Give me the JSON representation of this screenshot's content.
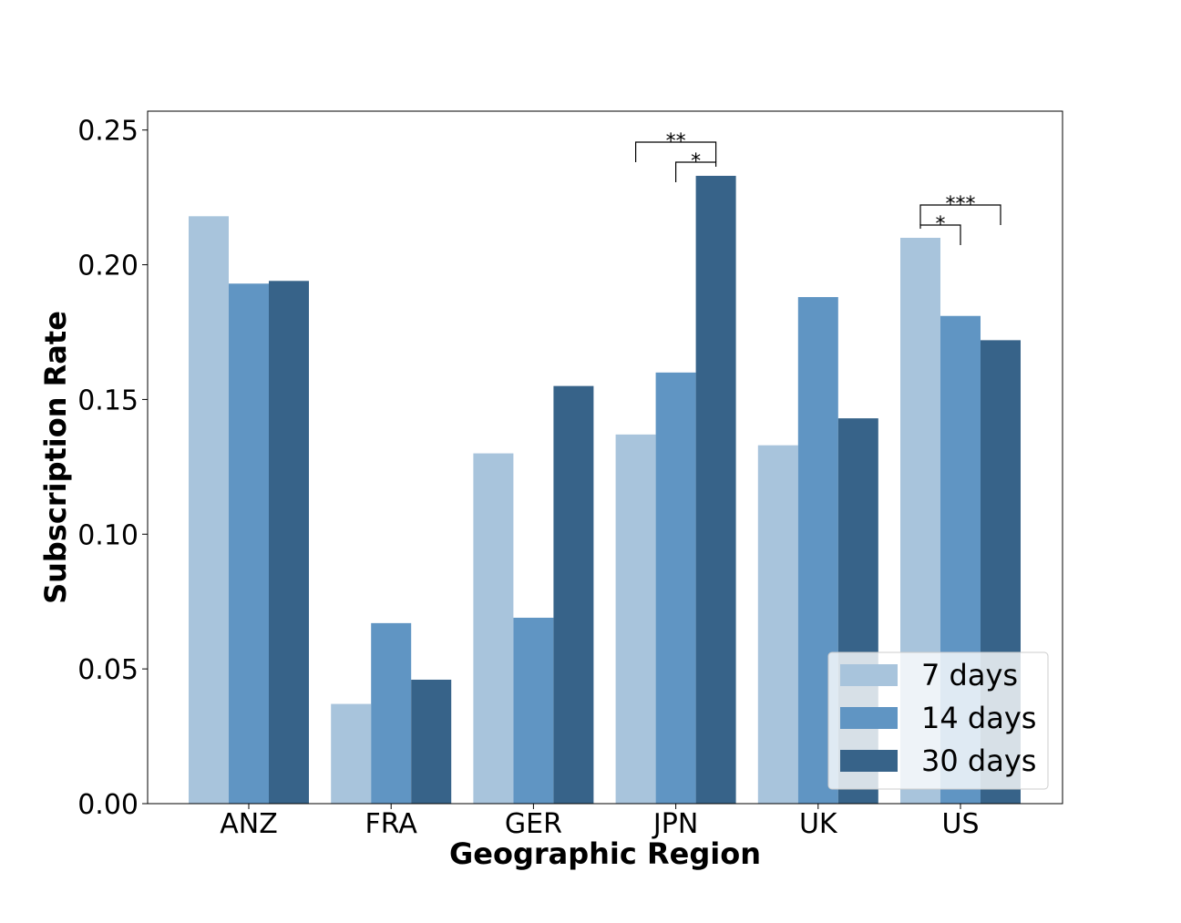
{
  "chart_data": {
    "type": "bar",
    "title": "",
    "xlabel": "Geographic Region",
    "ylabel": "Subscription Rate",
    "categories": [
      "ANZ",
      "FRA",
      "GER",
      "JPN",
      "UK",
      "US"
    ],
    "series": [
      {
        "name": "7 days",
        "color": "#a8c4dc",
        "values": [
          0.218,
          0.037,
          0.13,
          0.137,
          0.133,
          0.21
        ]
      },
      {
        "name": "14 days",
        "color": "#6095c3",
        "values": [
          0.193,
          0.067,
          0.069,
          0.16,
          0.188,
          0.181
        ]
      },
      {
        "name": "30 days",
        "color": "#376389",
        "values": [
          0.194,
          0.046,
          0.155,
          0.233,
          0.143,
          0.172
        ]
      }
    ],
    "ylim": [
      0,
      0.257
    ],
    "yticks": [
      "0.00",
      "0.05",
      "0.10",
      "0.15",
      "0.20",
      "0.25"
    ],
    "ytick_values": [
      0,
      0.05,
      0.1,
      0.15,
      0.2,
      0.25
    ],
    "grid": false,
    "legend_position": "bottom-right",
    "significance": [
      {
        "category": "JPN",
        "from_series": 0,
        "to_series": 2,
        "label": "**"
      },
      {
        "category": "JPN",
        "from_series": 1,
        "to_series": 2,
        "label": "*"
      },
      {
        "category": "US",
        "from_series": 0,
        "to_series": 2,
        "label": "***"
      },
      {
        "category": "US",
        "from_series": 0,
        "to_series": 1,
        "label": "*"
      }
    ]
  }
}
